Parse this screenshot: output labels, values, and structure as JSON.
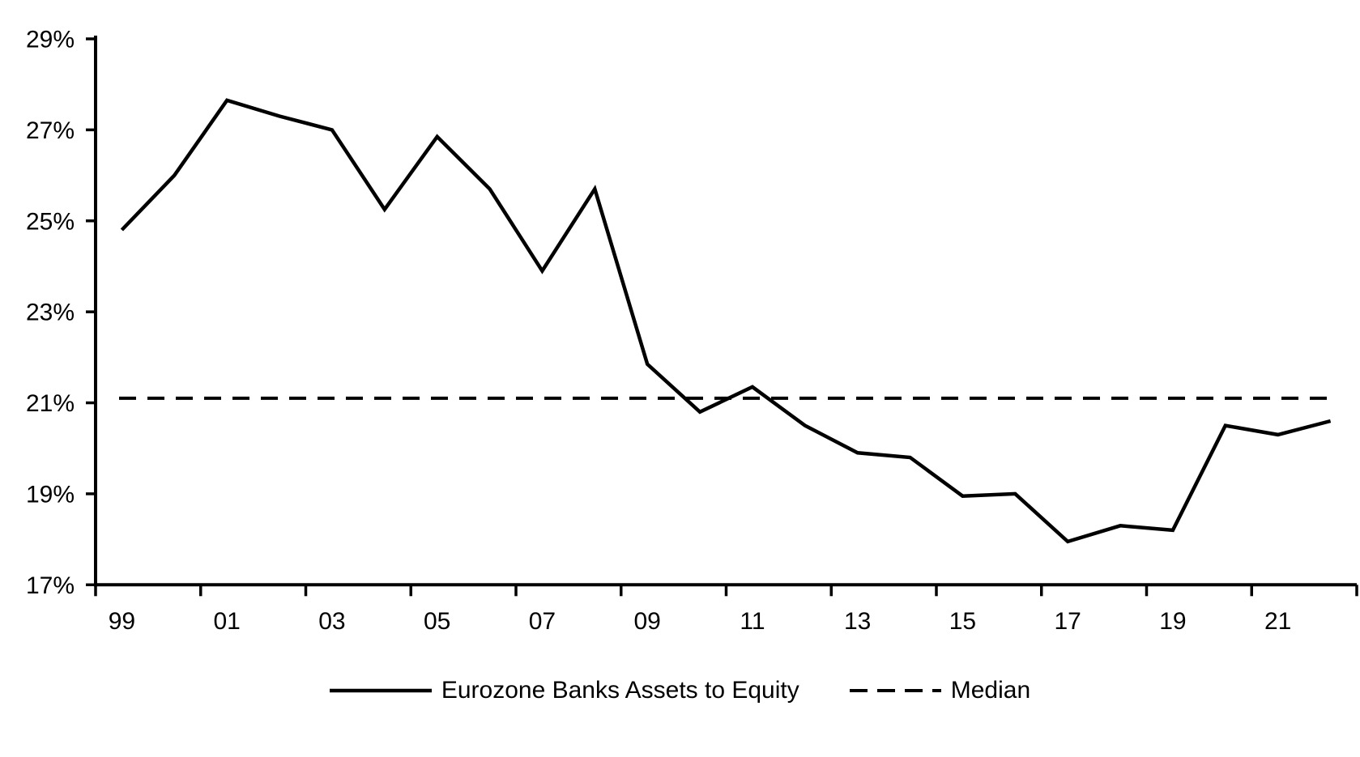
{
  "chart_data": {
    "type": "line",
    "title": "",
    "categories": [
      "99",
      "00",
      "01",
      "02",
      "03",
      "04",
      "05",
      "06",
      "07",
      "08",
      "09",
      "10",
      "11",
      "12",
      "13",
      "14",
      "15",
      "16",
      "17",
      "18",
      "19",
      "20",
      "21",
      "22"
    ],
    "x_tick_labels": [
      "99",
      "01",
      "03",
      "05",
      "07",
      "09",
      "11",
      "13",
      "15",
      "17",
      "19",
      "21"
    ],
    "series": [
      {
        "name": "Eurozone Banks Assets to Equity",
        "line_style": "solid",
        "values": [
          24.8,
          26.0,
          27.65,
          27.3,
          27.0,
          25.25,
          26.85,
          25.7,
          23.9,
          25.7,
          21.85,
          20.8,
          21.35,
          20.5,
          19.9,
          19.8,
          18.95,
          19.0,
          17.95,
          18.3,
          18.2,
          20.5,
          20.3,
          20.6
        ]
      },
      {
        "name": "Median",
        "line_style": "dashed",
        "value": 21.1
      }
    ],
    "ylim": [
      17,
      29
    ],
    "y_major_tick_step": 2,
    "y_tick_labels": [
      "17%",
      "19%",
      "21%",
      "23%",
      "25%",
      "27%",
      "29%"
    ],
    "y_tick_suffix": "%",
    "grid": false,
    "legend_position": "bottom",
    "colors": {
      "series": "#000000",
      "median": "#000000",
      "axis": "#000000",
      "text": "#000000",
      "background": "#ffffff"
    }
  }
}
